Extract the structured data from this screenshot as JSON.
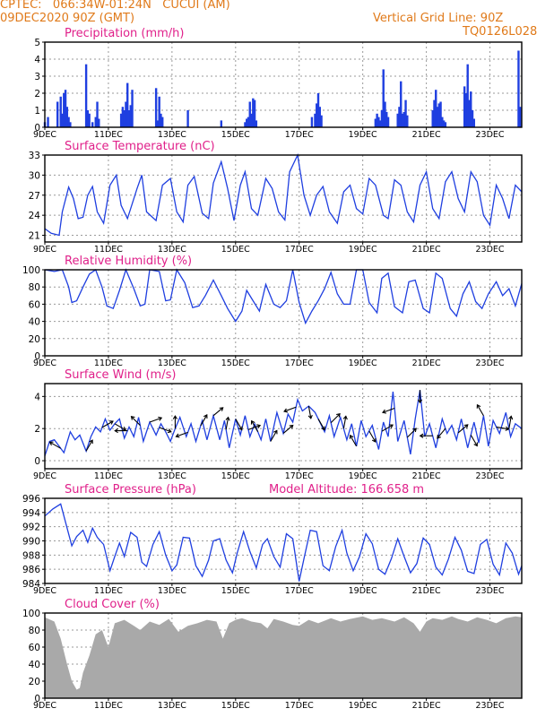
{
  "header": {
    "station": "CPTEC:   066:34W-01:24N   CUCUI (AM)",
    "date": "09DEC2020 90Z (GMT)",
    "grid_note": "Vertical Grid Line: 90Z",
    "model_code": "TQ0126L028"
  },
  "colors": {
    "header_text": "#e07a1a",
    "title_text": "#e0208a",
    "series_blue": "#1f3fe0",
    "cloud_gray": "#a9a9a9",
    "arrow_black": "#000000"
  },
  "chart_data": [
    {
      "id": "precip",
      "type": "bar",
      "title": "Precipitation (mm/h)",
      "ylim": [
        0,
        5
      ],
      "yticks": [
        0,
        1,
        2,
        3,
        4,
        5
      ],
      "xlim": [
        0,
        15
      ],
      "xtick_labels": [
        "9DEC",
        "11DEC",
        "13DEC",
        "15DEC",
        "17DEC",
        "19DEC",
        "21DEC",
        "23DEC"
      ],
      "xtick_positions": [
        0,
        2,
        4,
        6,
        8,
        10,
        12,
        14
      ],
      "grid": true,
      "x": [
        0.0,
        0.1,
        0.4,
        0.5,
        0.55,
        0.6,
        0.65,
        0.7,
        0.75,
        0.8,
        1.3,
        1.35,
        1.4,
        1.5,
        1.6,
        1.65,
        1.7,
        2.4,
        2.45,
        2.5,
        2.55,
        2.6,
        2.65,
        2.7,
        2.75,
        3.5,
        3.55,
        3.6,
        3.65,
        3.7,
        4.5,
        5.55,
        6.3,
        6.35,
        6.4,
        6.45,
        6.5,
        6.55,
        6.6,
        6.65,
        8.4,
        8.5,
        8.55,
        8.6,
        8.65,
        8.7,
        10.4,
        10.45,
        10.5,
        10.55,
        10.6,
        10.65,
        10.7,
        10.75,
        10.8,
        11.1,
        11.15,
        11.2,
        11.25,
        11.3,
        11.35,
        11.4,
        12.2,
        12.25,
        12.3,
        12.35,
        12.4,
        12.45,
        12.5,
        12.55,
        12.6,
        13.2,
        13.25,
        13.3,
        13.35,
        13.4,
        13.45,
        13.5,
        14.9,
        14.95
      ],
      "values": [
        0.3,
        0.6,
        1.5,
        1.8,
        0.8,
        2.0,
        2.2,
        1.2,
        0.6,
        0.3,
        3.7,
        1.0,
        0.8,
        0.3,
        0.6,
        1.5,
        0.5,
        0.8,
        1.2,
        1.0,
        1.5,
        2.6,
        1.0,
        1.3,
        2.2,
        2.3,
        0.4,
        1.8,
        0.8,
        0.6,
        1.0,
        0.4,
        0.3,
        0.5,
        0.6,
        1.5,
        0.8,
        1.7,
        1.6,
        0.4,
        0.6,
        0.8,
        1.4,
        2.0,
        1.2,
        0.7,
        0.5,
        0.8,
        0.6,
        0.4,
        1.0,
        3.4,
        1.5,
        0.9,
        0.6,
        0.8,
        1.2,
        2.7,
        0.8,
        0.9,
        1.6,
        0.7,
        1.0,
        1.6,
        2.2,
        1.2,
        1.4,
        1.5,
        0.6,
        0.4,
        0.3,
        2.4,
        2.0,
        3.7,
        1.6,
        2.1,
        1.0,
        0.5,
        4.5,
        1.2
      ]
    },
    {
      "id": "temp",
      "type": "line",
      "title": "Surface Temperature (nC)",
      "ylim": [
        20,
        33
      ],
      "yticks": [
        21,
        24,
        27,
        30,
        33
      ],
      "xlim": [
        0,
        15
      ],
      "xtick_labels": [
        "9DEC",
        "11DEC",
        "13DEC",
        "15DEC",
        "17DEC",
        "19DEC",
        "21DEC",
        "23DEC"
      ],
      "xtick_positions": [
        0,
        2,
        4,
        6,
        8,
        10,
        12,
        14
      ],
      "grid": true,
      "x": [
        0.0,
        0.2,
        0.45,
        0.55,
        0.75,
        0.9,
        1.05,
        1.2,
        1.35,
        1.5,
        1.65,
        1.85,
        2.05,
        2.25,
        2.4,
        2.6,
        2.9,
        3.05,
        3.2,
        3.5,
        3.7,
        3.95,
        4.15,
        4.35,
        4.5,
        4.7,
        4.95,
        5.15,
        5.3,
        5.55,
        5.75,
        5.95,
        6.15,
        6.3,
        6.5,
        6.7,
        6.95,
        7.15,
        7.35,
        7.55,
        7.7,
        7.95,
        8.15,
        8.35,
        8.55,
        8.75,
        8.95,
        9.2,
        9.4,
        9.6,
        9.8,
        10.0,
        10.2,
        10.4,
        10.65,
        10.8,
        11.0,
        11.2,
        11.4,
        11.6,
        11.8,
        12.0,
        12.2,
        12.4,
        12.6,
        12.8,
        13.0,
        13.2,
        13.4,
        13.6,
        13.8,
        14.0,
        14.2,
        14.4,
        14.6,
        14.8,
        15.0
      ],
      "values": [
        22.0,
        21.3,
        21.0,
        24.5,
        28.2,
        26.5,
        23.5,
        23.7,
        27.0,
        28.3,
        24.5,
        22.8,
        28.5,
        30.0,
        25.5,
        23.5,
        28.0,
        30.0,
        24.5,
        23.2,
        28.5,
        29.5,
        24.5,
        23.0,
        28.5,
        29.8,
        24.3,
        23.5,
        28.8,
        32.0,
        28.0,
        23.2,
        28.5,
        30.5,
        25.0,
        24.0,
        29.5,
        28.0,
        24.5,
        23.3,
        30.5,
        33.0,
        27.0,
        24.0,
        27.0,
        28.3,
        24.5,
        22.8,
        27.5,
        28.5,
        25.0,
        24.2,
        29.5,
        28.5,
        24.0,
        23.5,
        29.3,
        28.5,
        24.5,
        23.0,
        28.5,
        30.5,
        25.0,
        23.5,
        29.0,
        30.5,
        26.5,
        24.5,
        30.5,
        29.0,
        24.0,
        22.5,
        28.5,
        26.5,
        23.5,
        28.5,
        27.5
      ]
    },
    {
      "id": "rh",
      "type": "line",
      "title": "Relative Humidity (%)",
      "ylim": [
        0,
        100
      ],
      "yticks": [
        0,
        20,
        40,
        60,
        80,
        100
      ],
      "xlim": [
        0,
        15
      ],
      "xtick_labels": [
        "9DEC",
        "11DEC",
        "13DEC",
        "15DEC",
        "17DEC",
        "19DEC",
        "21DEC",
        "23DEC"
      ],
      "xtick_positions": [
        0,
        2,
        4,
        6,
        8,
        10,
        12,
        14
      ],
      "grid": true,
      "x": [
        0.0,
        0.3,
        0.55,
        0.75,
        0.85,
        1.0,
        1.2,
        1.4,
        1.6,
        1.8,
        1.95,
        2.15,
        2.35,
        2.55,
        2.8,
        3.0,
        3.15,
        3.3,
        3.6,
        3.8,
        3.95,
        4.15,
        4.4,
        4.65,
        4.85,
        5.05,
        5.3,
        5.55,
        5.75,
        6.0,
        6.2,
        6.35,
        6.55,
        6.75,
        6.95,
        7.2,
        7.4,
        7.6,
        7.8,
        8.0,
        8.2,
        8.4,
        8.6,
        8.8,
        9.0,
        9.2,
        9.4,
        9.6,
        9.8,
        10.0,
        10.2,
        10.45,
        10.6,
        10.8,
        11.0,
        11.25,
        11.45,
        11.65,
        11.9,
        12.1,
        12.3,
        12.5,
        12.75,
        12.95,
        13.15,
        13.35,
        13.55,
        13.75,
        13.95,
        14.2,
        14.4,
        14.6,
        14.8,
        15.0
      ],
      "values": [
        100,
        98,
        100,
        80,
        62,
        64,
        80,
        95,
        100,
        80,
        58,
        55,
        76,
        100,
        78,
        58,
        60,
        100,
        98,
        64,
        65,
        100,
        85,
        56,
        58,
        70,
        88,
        70,
        55,
        40,
        52,
        76,
        64,
        52,
        83,
        60,
        56,
        64,
        100,
        62,
        38,
        52,
        64,
        78,
        97,
        72,
        60,
        60,
        100,
        100,
        62,
        50,
        90,
        96,
        57,
        50,
        86,
        88,
        55,
        50,
        96,
        90,
        55,
        46,
        72,
        86,
        63,
        55,
        72,
        86,
        70,
        78,
        58,
        84
      ]
    },
    {
      "id": "wind",
      "type": "line",
      "title": "Surface Wind (m/s)",
      "ylim": [
        -0.5,
        4.8
      ],
      "yticks": [
        0,
        2,
        4
      ],
      "xlim": [
        0,
        15
      ],
      "xtick_labels": [
        "9DEC",
        "11DEC",
        "13DEC",
        "15DEC",
        "17DEC",
        "19DEC",
        "21DEC",
        "23DEC"
      ],
      "xtick_positions": [
        0,
        2,
        4,
        6,
        8,
        10,
        12,
        14
      ],
      "grid": true,
      "x": [
        0.0,
        0.15,
        0.3,
        0.45,
        0.6,
        0.8,
        0.95,
        1.1,
        1.3,
        1.45,
        1.6,
        1.75,
        1.9,
        2.05,
        2.2,
        2.35,
        2.5,
        2.65,
        2.8,
        2.95,
        3.1,
        3.3,
        3.5,
        3.65,
        3.8,
        3.95,
        4.1,
        4.25,
        4.45,
        4.6,
        4.75,
        4.95,
        5.1,
        5.3,
        5.5,
        5.65,
        5.8,
        6.0,
        6.15,
        6.3,
        6.45,
        6.6,
        6.8,
        6.95,
        7.1,
        7.3,
        7.5,
        7.65,
        7.8,
        7.95,
        8.1,
        8.3,
        8.5,
        8.65,
        8.8,
        8.95,
        9.1,
        9.3,
        9.5,
        9.65,
        9.8,
        9.95,
        10.1,
        10.3,
        10.5,
        10.65,
        10.8,
        10.95,
        11.1,
        11.3,
        11.5,
        11.65,
        11.8,
        11.95,
        12.1,
        12.3,
        12.5,
        12.65,
        12.8,
        12.95,
        13.1,
        13.3,
        13.5,
        13.65,
        13.8,
        13.95,
        14.1,
        14.3,
        14.5,
        14.65,
        14.8,
        15.0
      ],
      "values": [
        0.3,
        1.2,
        1.3,
        0.9,
        0.5,
        1.8,
        1.3,
        1.6,
        0.6,
        1.5,
        2.1,
        1.8,
        2.6,
        1.9,
        2.3,
        2.6,
        1.4,
        2.1,
        1.5,
        2.7,
        1.2,
        2.4,
        1.6,
        2.3,
        1.8,
        1.2,
        2.0,
        2.7,
        1.5,
        2.3,
        1.2,
        2.5,
        1.3,
        2.8,
        1.3,
        2.5,
        0.8,
        2.6,
        1.6,
        2.8,
        1.5,
        2.3,
        1.3,
        2.6,
        1.2,
        3.0,
        1.7,
        2.9,
        2.4,
        3.8,
        3.1,
        3.4,
        3.0,
        2.4,
        1.8,
        2.8,
        1.5,
        2.7,
        1.3,
        2.3,
        0.9,
        2.5,
        1.5,
        2.2,
        0.7,
        2.4,
        1.5,
        4.3,
        1.2,
        2.5,
        0.4,
        2.6,
        4.4,
        1.5,
        2.3,
        0.8,
        2.6,
        1.7,
        2.2,
        1.3,
        2.6,
        0.8,
        2.4,
        1.1,
        2.8,
        0.9,
        2.5,
        1.7,
        3.0,
        1.5,
        2.3,
        2.0
      ],
      "arrows_x": [
        0.5,
        1.3,
        1.8,
        2.2,
        2.6,
        3.0,
        3.3,
        3.6,
        4.1,
        4.5,
        4.9,
        5.3,
        5.7,
        6.0,
        6.4,
        6.7,
        7.1,
        7.5,
        7.9,
        8.3,
        8.6,
        9.0,
        9.4,
        9.8,
        10.2,
        10.6,
        11.0,
        11.4,
        11.8,
        12.2,
        12.6,
        13.0,
        13.4,
        13.8,
        14.2,
        14.6
      ],
      "arrows_angle_deg": [
        150,
        60,
        30,
        330,
        180,
        135,
        20,
        340,
        90,
        200,
        60,
        40,
        80,
        300,
        20,
        120,
        60,
        40,
        200,
        280,
        300,
        45,
        80,
        120,
        300,
        30,
        200,
        45,
        270,
        180,
        230,
        40,
        300,
        120,
        350,
        80
      ]
    },
    {
      "id": "pres",
      "type": "line",
      "title": "Surface Pressure (hPa)",
      "annotation": "Model Altitude: 166.658  m",
      "ylim": [
        984,
        996
      ],
      "yticks": [
        984,
        986,
        988,
        990,
        992,
        994,
        996
      ],
      "xlim": [
        0,
        15
      ],
      "xtick_labels": [
        "9DEC",
        "11DEC",
        "13DEC",
        "15DEC",
        "17DEC",
        "19DEC",
        "21DEC",
        "23DEC"
      ],
      "xtick_positions": [
        0,
        2,
        4,
        6,
        8,
        10,
        12,
        14
      ],
      "grid": true,
      "x": [
        0.0,
        0.25,
        0.5,
        0.6,
        0.85,
        1.0,
        1.2,
        1.35,
        1.5,
        1.65,
        1.85,
        2.05,
        2.2,
        2.35,
        2.5,
        2.7,
        2.9,
        3.05,
        3.2,
        3.4,
        3.6,
        3.8,
        4.0,
        4.15,
        4.35,
        4.55,
        4.75,
        4.95,
        5.15,
        5.3,
        5.5,
        5.7,
        5.9,
        6.05,
        6.25,
        6.45,
        6.65,
        6.85,
        7.0,
        7.2,
        7.4,
        7.6,
        7.8,
        8.0,
        8.15,
        8.35,
        8.55,
        8.75,
        8.95,
        9.15,
        9.35,
        9.5,
        9.7,
        9.9,
        10.1,
        10.3,
        10.5,
        10.7,
        10.9,
        11.1,
        11.3,
        11.5,
        11.7,
        11.9,
        12.1,
        12.3,
        12.5,
        12.7,
        12.9,
        13.1,
        13.3,
        13.5,
        13.7,
        13.9,
        14.1,
        14.3,
        14.5,
        14.7,
        14.9,
        15.0
      ],
      "values": [
        993.5,
        994.5,
        995.2,
        993.5,
        989.3,
        990.6,
        991.5,
        989.8,
        991.8,
        990.5,
        989.5,
        985.8,
        987.8,
        989.7,
        987.8,
        991.2,
        990.5,
        987.0,
        986.4,
        989.5,
        991.3,
        988.0,
        985.8,
        986.6,
        990.5,
        990.4,
        986.5,
        985.0,
        987.3,
        990.0,
        990.3,
        987.3,
        985.5,
        988.3,
        991.3,
        988.5,
        986.2,
        989.5,
        990.3,
        987.8,
        986.3,
        991.0,
        990.3,
        984.3,
        987.5,
        991.5,
        991.3,
        986.5,
        985.8,
        989.2,
        991.5,
        988.3,
        985.8,
        987.8,
        991.0,
        989.6,
        986.0,
        985.3,
        987.5,
        990.3,
        987.8,
        985.5,
        986.8,
        990.4,
        989.5,
        986.3,
        985.2,
        987.5,
        990.5,
        988.7,
        985.7,
        985.4,
        989.5,
        990.2,
        986.7,
        985.2,
        989.7,
        988.3,
        985.3,
        986.5
      ]
    },
    {
      "id": "cloud",
      "type": "area",
      "title": "Cloud Cover (%)",
      "ylim": [
        0,
        100
      ],
      "yticks": [
        0,
        20,
        40,
        60,
        80,
        100
      ],
      "xlim": [
        0,
        15
      ],
      "xtick_labels": [
        "9DEC",
        "11DEC",
        "13DEC",
        "15DEC",
        "17DEC",
        "19DEC",
        "21DEC",
        "23DEC"
      ],
      "xtick_positions": [
        0,
        2,
        4,
        6,
        8,
        10,
        12,
        14
      ],
      "grid": true,
      "x": [
        0.0,
        0.3,
        0.5,
        0.7,
        0.85,
        1.0,
        1.1,
        1.2,
        1.4,
        1.6,
        1.8,
        2.0,
        2.2,
        2.5,
        2.8,
        3.0,
        3.3,
        3.6,
        3.9,
        4.2,
        4.5,
        4.8,
        5.1,
        5.4,
        5.6,
        5.8,
        6.0,
        6.2,
        6.5,
        6.8,
        7.0,
        7.2,
        7.5,
        7.8,
        8.0,
        8.3,
        8.6,
        9.0,
        9.3,
        9.6,
        10.0,
        10.3,
        10.6,
        11.0,
        11.3,
        11.6,
        11.8,
        12.0,
        12.2,
        12.5,
        12.8,
        13.0,
        13.3,
        13.6,
        13.9,
        14.2,
        14.5,
        14.8,
        15.0
      ],
      "values": [
        95,
        90,
        70,
        40,
        20,
        10,
        12,
        30,
        50,
        75,
        80,
        60,
        88,
        92,
        85,
        80,
        90,
        86,
        93,
        78,
        85,
        88,
        92,
        90,
        70,
        88,
        92,
        94,
        90,
        88,
        82,
        93,
        90,
        86,
        85,
        92,
        88,
        94,
        90,
        93,
        96,
        92,
        94,
        90,
        95,
        88,
        78,
        90,
        94,
        92,
        96,
        93,
        90,
        95,
        92,
        88,
        94,
        96,
        95
      ]
    }
  ]
}
